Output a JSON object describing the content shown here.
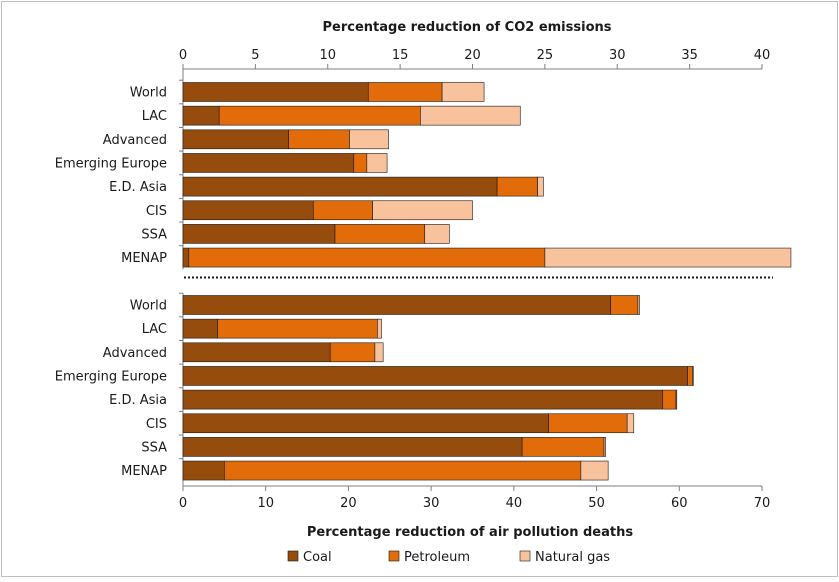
{
  "colors": {
    "coal": "#954c0c",
    "petroleum": "#e36c0a",
    "natural_gas": "#f8c29c",
    "frame": "#bfbfbf",
    "axis": "#7f7f7f"
  },
  "legend": [
    {
      "key": "coal",
      "label": "Coal"
    },
    {
      "key": "petroleum",
      "label": "Petroleum"
    },
    {
      "key": "natural_gas",
      "label": "Natural gas"
    }
  ],
  "chart_data": [
    {
      "type": "bar",
      "orientation": "horizontal",
      "stacked": true,
      "xlabel": "Percentage reduction of CO2 emissions",
      "xlim": [
        0,
        40
      ],
      "xticks": [
        0,
        5,
        10,
        15,
        20,
        25,
        30,
        35,
        40
      ],
      "axis_position": "top",
      "categories": [
        "World",
        "LAC",
        "Advanced",
        "Emerging Europe",
        "E.D. Asia",
        "CIS",
        "SSA",
        "MENAP"
      ],
      "series": [
        {
          "name": "Coal",
          "values": [
            12.8,
            2.5,
            7.3,
            11.8,
            21.7,
            9.0,
            10.5,
            0.4
          ]
        },
        {
          "name": "Petroleum",
          "values": [
            5.1,
            13.9,
            4.2,
            0.9,
            2.8,
            4.1,
            6.2,
            24.6
          ]
        },
        {
          "name": "Natural gas",
          "values": [
            2.9,
            6.9,
            2.7,
            1.4,
            0.4,
            6.9,
            1.7,
            17.0
          ]
        }
      ]
    },
    {
      "type": "bar",
      "orientation": "horizontal",
      "stacked": true,
      "xlabel": "Percentage reduction of air pollution deaths",
      "xlim": [
        0,
        70
      ],
      "xticks": [
        0,
        10,
        20,
        30,
        40,
        50,
        60,
        70
      ],
      "axis_position": "bottom",
      "categories": [
        "World",
        "LAC",
        "Advanced",
        "Emerging Europe",
        "E.D. Asia",
        "CIS",
        "SSA",
        "MENAP"
      ],
      "series": [
        {
          "name": "Coal",
          "values": [
            51.7,
            4.2,
            17.8,
            61.0,
            58.0,
            44.2,
            41.0,
            5.0
          ]
        },
        {
          "name": "Petroleum",
          "values": [
            3.3,
            19.3,
            5.4,
            0.6,
            1.6,
            9.5,
            9.9,
            43.1
          ]
        },
        {
          "name": "Natural gas",
          "values": [
            0.2,
            0.5,
            1.0,
            0.1,
            0.1,
            0.8,
            0.2,
            3.3
          ]
        }
      ]
    }
  ]
}
